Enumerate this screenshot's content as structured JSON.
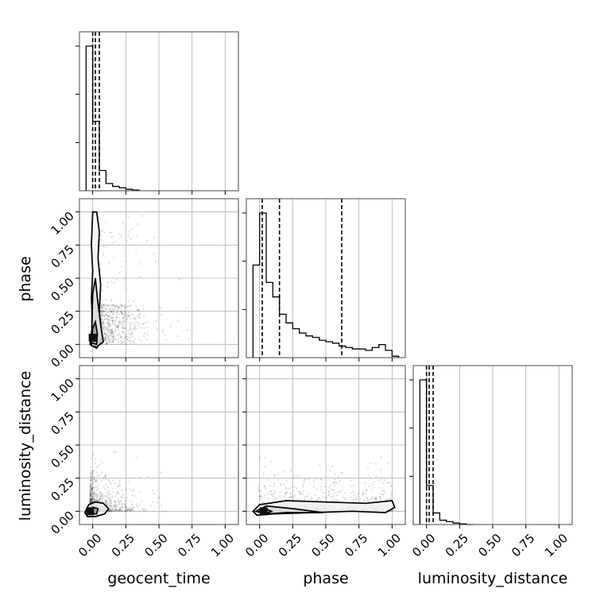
{
  "chart_data": {
    "type": "corner",
    "parameters": [
      "geocent_time",
      "phase",
      "luminosity_distance"
    ],
    "axis_labels": {
      "x": [
        "geocent_time",
        "phase",
        "luminosity_distance"
      ],
      "y": [
        "",
        "phase",
        "luminosity_distance"
      ]
    },
    "xlim": [
      -0.1,
      1.1
    ],
    "ylim": [
      -0.1,
      1.1
    ],
    "tick_values": [
      0.0,
      0.25,
      0.5,
      0.75,
      1.0
    ],
    "tick_labels": [
      "0.00",
      "0.25",
      "0.50",
      "0.75",
      "1.00"
    ],
    "grid": true,
    "histograms": [
      {
        "parameter": "geocent_time",
        "bin_edges": [
          -0.05,
          0.0,
          0.05,
          0.1,
          0.15,
          0.2,
          0.25,
          0.3,
          0.35
        ],
        "counts": [
          1.0,
          0.48,
          0.14,
          0.05,
          0.03,
          0.02,
          0.01,
          0.005
        ],
        "quantile_lines": [
          0.0,
          0.02,
          0.05
        ]
      },
      {
        "parameter": "phase",
        "bin_edges": [
          -0.05,
          0.0,
          0.05,
          0.1,
          0.15,
          0.2,
          0.25,
          0.3,
          0.35,
          0.4,
          0.45,
          0.5,
          0.55,
          0.6,
          0.65,
          0.7,
          0.75,
          0.8,
          0.85,
          0.9,
          0.95,
          1.0,
          1.05
        ],
        "counts": [
          0.64,
          1.0,
          0.52,
          0.42,
          0.3,
          0.24,
          0.2,
          0.17,
          0.15,
          0.14,
          0.12,
          0.11,
          0.1,
          0.08,
          0.07,
          0.06,
          0.06,
          0.05,
          0.07,
          0.09,
          0.05,
          0.01
        ],
        "quantile_lines": [
          0.02,
          0.15,
          0.62
        ]
      },
      {
        "parameter": "luminosity_distance",
        "bin_edges": [
          -0.05,
          0.0,
          0.05,
          0.1,
          0.15,
          0.2,
          0.25,
          0.3,
          0.35
        ],
        "counts": [
          1.0,
          0.27,
          0.08,
          0.03,
          0.02,
          0.01,
          0.005,
          0.0
        ],
        "quantile_lines": [
          0.0,
          0.02,
          0.05
        ]
      }
    ],
    "joint_panels": [
      {
        "x": "geocent_time",
        "y": "phase",
        "contours": [
          {
            "level": "outer",
            "points": [
              [
                -0.02,
                0.0
              ],
              [
                0.0,
                0.15
              ],
              [
                -0.01,
                0.35
              ],
              [
                0.0,
                0.55
              ],
              [
                -0.01,
                0.75
              ],
              [
                0.0,
                1.0
              ],
              [
                0.03,
                1.0
              ],
              [
                0.05,
                0.85
              ],
              [
                0.04,
                0.65
              ],
              [
                0.06,
                0.45
              ],
              [
                0.05,
                0.25
              ],
              [
                0.07,
                0.05
              ],
              [
                0.03,
                -0.03
              ]
            ]
          },
          {
            "level": "middle",
            "points": [
              [
                -0.01,
                -0.01
              ],
              [
                -0.005,
                0.18
              ],
              [
                0.0,
                0.38
              ],
              [
                0.02,
                0.5
              ],
              [
                0.035,
                0.35
              ],
              [
                0.06,
                0.15
              ],
              [
                0.08,
                0.02
              ],
              [
                0.03,
                -0.02
              ]
            ]
          },
          {
            "level": "inner",
            "points": [
              [
                -0.01,
                0.01
              ],
              [
                0.0,
                0.12
              ],
              [
                0.02,
                0.17
              ],
              [
                0.035,
                0.08
              ],
              [
                0.03,
                0.0
              ]
            ]
          }
        ],
        "density_peak": [
          0.0,
          0.05
        ]
      },
      {
        "x": "geocent_time",
        "y": "luminosity_distance",
        "contours": [
          {
            "level": "outer",
            "points": [
              [
                -0.06,
                -0.01
              ],
              [
                -0.03,
                0.05
              ],
              [
                0.02,
                0.07
              ],
              [
                0.08,
                0.06
              ],
              [
                0.12,
                0.02
              ],
              [
                0.09,
                -0.02
              ],
              [
                0.02,
                -0.04
              ],
              [
                -0.04,
                -0.04
              ]
            ]
          },
          {
            "level": "inner",
            "points": [
              [
                -0.03,
                0.0
              ],
              [
                0.0,
                0.03
              ],
              [
                0.04,
                0.02
              ],
              [
                0.03,
                -0.02
              ],
              [
                -0.02,
                -0.02
              ]
            ]
          }
        ],
        "density_peak": [
          -0.02,
          0.0
        ]
      },
      {
        "x": "phase",
        "y": "luminosity_distance",
        "contours": [
          {
            "level": "outer",
            "points": [
              [
                -0.05,
                0.0
              ],
              [
                0.0,
                0.05
              ],
              [
                0.2,
                0.08
              ],
              [
                0.5,
                0.07
              ],
              [
                0.8,
                0.06
              ],
              [
                1.0,
                0.08
              ],
              [
                1.02,
                0.03
              ],
              [
                0.95,
                -0.01
              ],
              [
                0.7,
                0.0
              ],
              [
                0.4,
                -0.01
              ],
              [
                0.1,
                -0.02
              ],
              [
                -0.02,
                -0.03
              ]
            ]
          },
          {
            "level": "middle",
            "points": [
              [
                -0.03,
                0.0
              ],
              [
                0.05,
                0.04
              ],
              [
                0.25,
                0.02
              ],
              [
                0.48,
                -0.01
              ],
              [
                0.2,
                -0.01
              ],
              [
                0.05,
                -0.02
              ]
            ]
          },
          {
            "level": "inner",
            "points": [
              [
                0.0,
                0.0
              ],
              [
                0.04,
                0.02
              ],
              [
                0.09,
                0.0
              ],
              [
                0.04,
                -0.02
              ]
            ]
          }
        ],
        "density_peak": [
          0.03,
          0.0
        ]
      }
    ]
  }
}
